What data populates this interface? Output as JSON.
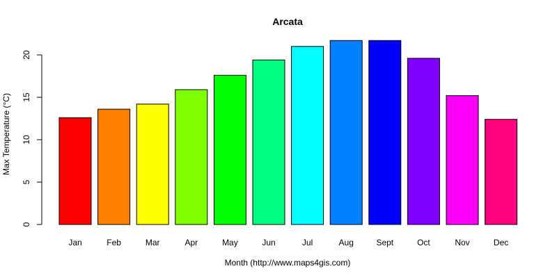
{
  "chart_data": {
    "type": "bar",
    "title": "Arcata",
    "xlabel": "Month (http://www.maps4gis.com)",
    "ylabel": "Max Temperature (°C)",
    "ylim": [
      0,
      22
    ],
    "yticks": [
      0,
      5,
      10,
      15,
      20
    ],
    "categories": [
      "Jan",
      "Feb",
      "Mar",
      "Apr",
      "May",
      "Jun",
      "Jul",
      "Aug",
      "Sept",
      "Oct",
      "Nov",
      "Dec"
    ],
    "values": [
      12.6,
      13.6,
      14.2,
      15.9,
      17.6,
      19.4,
      21.0,
      21.7,
      21.7,
      19.6,
      15.2,
      12.4
    ],
    "colors": [
      "#ff0000",
      "#ff8000",
      "#ffff00",
      "#80ff00",
      "#00ff00",
      "#00ff80",
      "#00ffff",
      "#0080ff",
      "#0000ff",
      "#8000ff",
      "#ff00ff",
      "#ff0080"
    ],
    "grid": false,
    "legend": "none"
  }
}
